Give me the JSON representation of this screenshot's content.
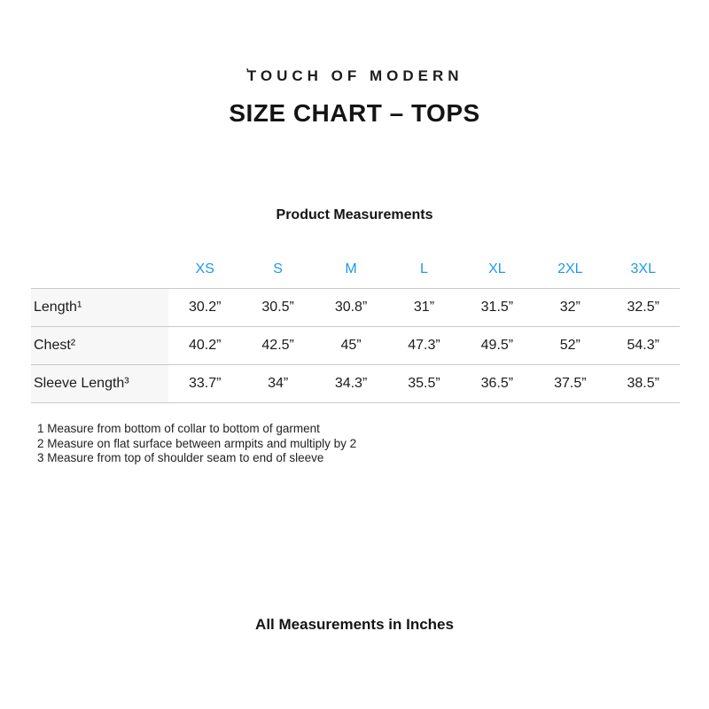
{
  "brand": {
    "mark": "ʼ",
    "name": "TOUCH OF MODERN"
  },
  "title": "SIZE CHART – TOPS",
  "table": {
    "caption": "Product Measurements",
    "columns": [
      "XS",
      "S",
      "M",
      "L",
      "XL",
      "2XL",
      "3XL"
    ],
    "rows": [
      {
        "label": "Length¹",
        "values": [
          "30.2”",
          "30.5”",
          "30.8”",
          "31”",
          "31.5”",
          "32”",
          "32.5”"
        ]
      },
      {
        "label": "Chest²",
        "values": [
          "40.2”",
          "42.5”",
          "45”",
          "47.3”",
          "49.5”",
          "52”",
          "54.3”"
        ]
      },
      {
        "label": "Sleeve Length³",
        "values": [
          "33.7”",
          "34”",
          "34.3”",
          "35.5”",
          "36.5”",
          "37.5”",
          "38.5”"
        ]
      }
    ],
    "footnotes": [
      "1 Measure from bottom of collar to bottom of garment",
      "2 Measure on flat surface between armpits and multiply by 2",
      "3 Measure from top of shoulder seam to end of sleeve"
    ]
  },
  "units_note": "All Measurements in Inches",
  "colors": {
    "accent_blue": "#1E9AEA",
    "row_label_bg": "#F7F7F7",
    "divider": "#C9C9C9",
    "text": "#1B1B1B"
  }
}
